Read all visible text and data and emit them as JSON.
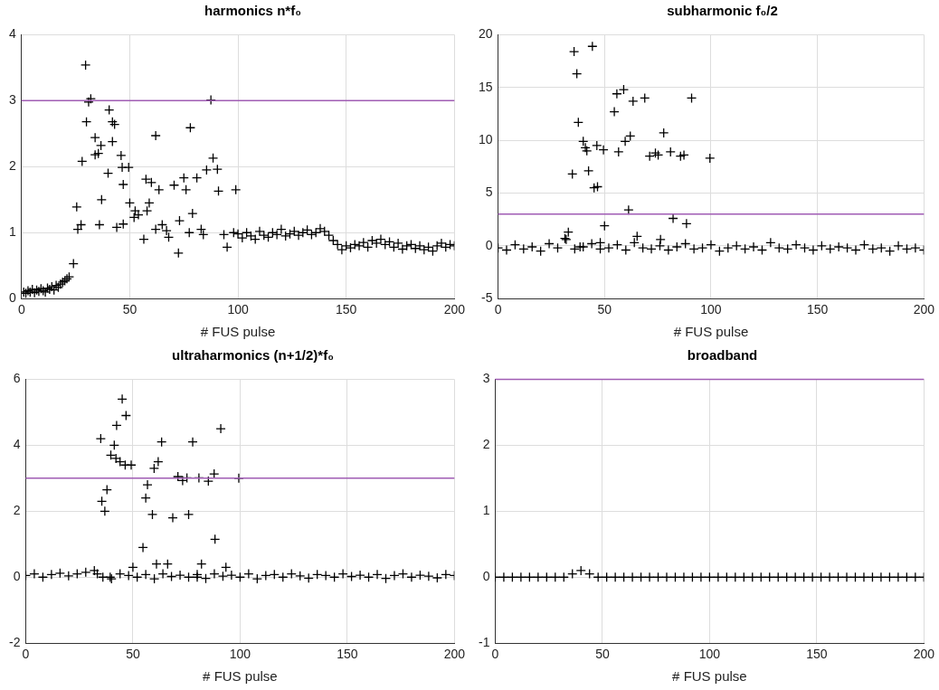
{
  "chart_data": [
    {
      "type": "scatter",
      "title": "harmonics n*f₀",
      "xlabel": "# FUS pulse",
      "marker": "cross",
      "grid": true,
      "legend": false,
      "color": "#000000",
      "xlim": [
        0,
        200
      ],
      "xticks": [
        0,
        50,
        100,
        150,
        200
      ],
      "ylim": [
        0,
        4
      ],
      "yticks": [
        0,
        1,
        2,
        3,
        4
      ],
      "ref_lines": [
        {
          "axis": "y",
          "value": 3,
          "color": "#a05cb4"
        }
      ],
      "x": [
        1,
        2,
        3,
        4,
        5,
        6,
        7,
        8,
        9,
        10,
        11,
        12,
        13,
        14,
        15,
        16,
        17,
        18,
        19,
        20,
        21,
        22,
        24,
        25.5,
        26,
        27.5,
        28,
        29.6,
        30,
        31,
        32,
        34,
        35.5,
        34,
        36,
        36.7,
        37,
        40,
        40.5,
        42,
        42,
        43,
        44,
        46,
        46.5,
        47,
        47,
        49.5,
        50,
        52,
        52.5,
        54,
        56.5,
        57.5,
        58,
        59,
        60,
        62,
        62,
        63.5,
        65,
        67,
        68,
        70.5,
        72.5,
        73,
        75,
        76,
        77.5,
        78,
        79,
        81,
        83,
        84,
        85.5,
        87.5,
        88.5,
        90.5,
        91,
        93.5,
        95,
        98,
        99,
        100,
        102,
        104,
        106,
        108,
        110,
        112,
        114,
        116,
        118,
        120,
        122,
        124,
        126,
        128,
        130,
        132,
        134,
        136,
        138,
        140,
        142,
        144,
        146,
        148,
        150,
        152,
        154,
        156,
        158,
        160,
        162,
        164,
        166,
        168,
        170,
        172,
        174,
        176,
        178,
        180,
        182,
        184,
        186,
        188,
        190,
        192,
        194,
        196,
        198,
        200
      ],
      "values": [
        0.1,
        0.08,
        0.12,
        0.1,
        0.14,
        0.09,
        0.13,
        0.11,
        0.15,
        0.12,
        0.1,
        0.16,
        0.14,
        0.18,
        0.13,
        0.2,
        0.17,
        0.22,
        0.25,
        0.27,
        0.3,
        0.33,
        0.53,
        1.39,
        1.05,
        1.12,
        2.08,
        3.54,
        2.68,
        2.98,
        3.03,
        2.44,
        2.2,
        2.18,
        1.12,
        2.32,
        1.5,
        1.9,
        2.86,
        2.68,
        2.38,
        2.64,
        1.08,
        2.17,
        1.99,
        1.73,
        1.13,
        1.99,
        1.45,
        1.23,
        1.33,
        1.27,
        0.9,
        1.81,
        1.33,
        1.45,
        1.76,
        2.47,
        1.05,
        1.65,
        1.12,
        1.03,
        0.93,
        1.72,
        0.69,
        1.18,
        1.83,
        1.65,
        1.0,
        2.59,
        1.29,
        1.83,
        1.05,
        0.97,
        1.95,
        3.01,
        2.13,
        1.96,
        1.63,
        0.97,
        0.78,
        1.0,
        1.65,
        0.98,
        0.92,
        1.0,
        0.95,
        0.9,
        1.02,
        0.96,
        0.93,
        1.0,
        0.97,
        1.05,
        0.95,
        0.98,
        1.02,
        0.96,
        1.0,
        1.04,
        0.97,
        1.0,
        1.06,
        1.02,
        0.96,
        0.88,
        0.82,
        0.74,
        0.8,
        0.77,
        0.82,
        0.8,
        0.85,
        0.78,
        0.88,
        0.84,
        0.9,
        0.82,
        0.86,
        0.78,
        0.84,
        0.75,
        0.8,
        0.82,
        0.76,
        0.8,
        0.74,
        0.78,
        0.72,
        0.8,
        0.84,
        0.78,
        0.82,
        0.8
      ]
    },
    {
      "type": "scatter",
      "title": "subharmonic f₀/2",
      "xlabel": "# FUS pulse",
      "marker": "cross",
      "grid": true,
      "legend": false,
      "color": "#000000",
      "xlim": [
        0,
        200
      ],
      "xticks": [
        0,
        50,
        100,
        150,
        200
      ],
      "ylim": [
        -5,
        20
      ],
      "yticks": [
        -5,
        0,
        5,
        10,
        15,
        20
      ],
      "ref_lines": [
        {
          "axis": "y",
          "value": 3,
          "color": "#a05cb4"
        }
      ],
      "x": [
        0,
        4,
        8,
        12,
        16,
        20,
        24,
        28,
        32,
        36,
        40,
        44,
        48,
        52,
        56,
        60,
        64,
        68,
        72,
        76,
        80,
        84,
        88,
        92,
        96,
        100,
        104,
        108,
        112,
        116,
        120,
        124,
        128,
        132,
        136,
        140,
        144,
        148,
        152,
        156,
        160,
        164,
        168,
        172,
        176,
        180,
        184,
        188,
        192,
        196,
        200,
        35.7,
        44.3,
        37,
        37.7,
        54.6,
        55.8,
        59,
        63.4,
        68.9,
        90.9,
        40,
        41,
        41.7,
        46.4,
        49.5,
        56.6,
        59.7,
        62.1,
        77.8,
        71.2,
        73.9,
        75.2,
        81,
        85.7,
        87.3,
        99.5,
        34.9,
        42.5,
        45.1,
        46.7,
        61.3,
        50,
        82.2,
        88.5,
        33,
        31.4,
        65.3,
        76.3,
        38.5,
        48
      ],
      "values": [
        -0.2,
        -0.4,
        0.1,
        -0.3,
        -0.1,
        -0.5,
        0.2,
        -0.2,
        0.6,
        -0.3,
        -0.1,
        0.2,
        -0.3,
        -0.2,
        0.1,
        -0.4,
        0.3,
        -0.2,
        -0.3,
        0.0,
        -0.4,
        -0.1,
        0.2,
        -0.3,
        -0.2,
        0.1,
        -0.5,
        -0.2,
        0.0,
        -0.3,
        -0.1,
        -0.4,
        0.3,
        -0.2,
        -0.3,
        0.1,
        -0.2,
        -0.4,
        0.0,
        -0.3,
        -0.1,
        -0.2,
        -0.4,
        0.1,
        -0.3,
        -0.2,
        -0.5,
        0.0,
        -0.3,
        -0.2,
        -0.4,
        18.4,
        18.9,
        16.3,
        11.7,
        12.7,
        14.4,
        14.8,
        13.7,
        14.0,
        14.0,
        9.9,
        9.3,
        9.0,
        9.5,
        9.1,
        8.9,
        9.9,
        10.4,
        10.7,
        8.5,
        8.8,
        8.6,
        8.9,
        8.5,
        8.6,
        8.3,
        6.8,
        7.1,
        5.5,
        5.6,
        3.4,
        1.9,
        2.6,
        2.1,
        1.3,
        0.7,
        0.9,
        0.6,
        -0.1,
        0.3
      ]
    },
    {
      "type": "scatter",
      "title": "ultraharmonics (n+1/2)*f₀",
      "xlabel": "# FUS pulse",
      "marker": "cross",
      "grid": true,
      "legend": false,
      "color": "#000000",
      "xlim": [
        0,
        200
      ],
      "xticks": [
        0,
        50,
        100,
        150,
        200
      ],
      "ylim": [
        -2,
        6
      ],
      "yticks": [
        -2,
        0,
        2,
        4,
        6
      ],
      "ref_lines": [
        {
          "axis": "y",
          "value": 3,
          "color": "#a05cb4"
        }
      ],
      "x": [
        0,
        4,
        8,
        12,
        16,
        20,
        24,
        28,
        32,
        36,
        40,
        44,
        48,
        52,
        56,
        60,
        64,
        68,
        72,
        76,
        80,
        84,
        88,
        92,
        96,
        100,
        104,
        108,
        112,
        116,
        120,
        124,
        128,
        132,
        136,
        140,
        144,
        148,
        152,
        156,
        160,
        164,
        168,
        172,
        176,
        180,
        184,
        188,
        192,
        196,
        200,
        45,
        46.8,
        42.4,
        35,
        41.3,
        63.4,
        77.9,
        91,
        39.7,
        42.1,
        44,
        46.4,
        49.2,
        61.8,
        59.9,
        71,
        73.2,
        75.2,
        80.8,
        85.2,
        87.9,
        99.4,
        56.8,
        37.9,
        35.5,
        36.9,
        56,
        59.1,
        68.6,
        76,
        88.3,
        54.7,
        61,
        66.2,
        82,
        93.4,
        50,
        39.4,
        33.4,
        80
      ],
      "values": [
        0.05,
        0.1,
        0.0,
        0.08,
        0.12,
        0.04,
        0.1,
        0.15,
        0.2,
        0.0,
        -0.05,
        0.1,
        0.05,
        0.0,
        0.08,
        -0.05,
        0.1,
        0.02,
        0.06,
        0.0,
        0.08,
        -0.04,
        0.1,
        0.03,
        0.06,
        0.0,
        0.1,
        -0.05,
        0.05,
        0.08,
        0.0,
        0.1,
        0.04,
        -0.03,
        0.08,
        0.05,
        0.0,
        0.1,
        0.02,
        0.06,
        0.0,
        0.08,
        -0.04,
        0.05,
        0.1,
        0.0,
        0.06,
        0.03,
        -0.02,
        0.08,
        0.05,
        5.4,
        4.9,
        4.6,
        4.2,
        4.0,
        4.1,
        4.1,
        4.5,
        3.7,
        3.6,
        3.5,
        3.4,
        3.4,
        3.5,
        3.3,
        3.05,
        2.93,
        3.01,
        3.01,
        2.91,
        3.13,
        3.0,
        2.8,
        2.65,
        2.3,
        2.0,
        2.4,
        1.9,
        1.8,
        1.9,
        1.15,
        0.9,
        0.4,
        0.4,
        0.4,
        0.3,
        0.3,
        0.0,
        0.1,
        0.0
      ]
    },
    {
      "type": "scatter",
      "title": "broadband",
      "xlabel": "# FUS pulse",
      "marker": "cross",
      "grid": true,
      "legend": false,
      "color": "#000000",
      "xlim": [
        0,
        200
      ],
      "xticks": [
        0,
        50,
        100,
        150,
        200
      ],
      "ylim": [
        -1,
        3
      ],
      "yticks": [
        -1,
        0,
        1,
        2,
        3
      ],
      "ref_lines": [
        {
          "axis": "y",
          "value": 3,
          "color": "#a05cb4"
        }
      ],
      "x": [
        0,
        4,
        8,
        12,
        16,
        20,
        24,
        28,
        32,
        36,
        40,
        44,
        48,
        52,
        56,
        60,
        64,
        68,
        72,
        76,
        80,
        84,
        88,
        92,
        96,
        100,
        104,
        108,
        112,
        116,
        120,
        124,
        128,
        132,
        136,
        140,
        144,
        148,
        152,
        156,
        160,
        164,
        168,
        172,
        176,
        180,
        184,
        188,
        192,
        196,
        200
      ],
      "values": [
        0,
        0,
        0,
        0,
        0,
        0,
        0,
        0,
        0,
        0.05,
        0.1,
        0.05,
        0,
        0,
        0,
        0,
        0,
        0,
        0,
        0,
        0,
        0,
        0,
        0,
        0,
        0,
        0,
        0,
        0,
        0,
        0,
        0,
        0,
        0,
        0,
        0,
        0,
        0,
        0,
        0,
        0,
        0,
        0,
        0,
        0,
        0,
        0,
        0,
        0,
        0,
        0
      ]
    }
  ]
}
